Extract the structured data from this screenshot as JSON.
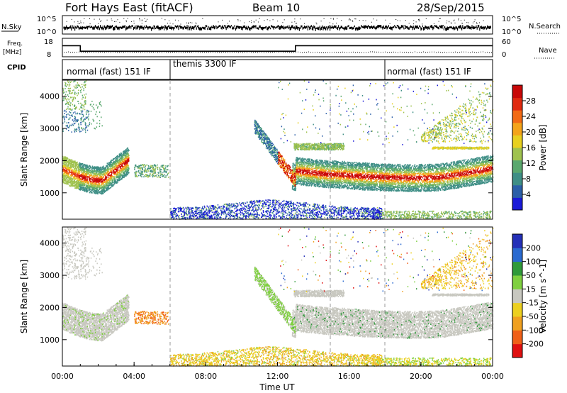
{
  "header": {
    "title": "Fort Hays East (fitACF)",
    "beam": "Beam 10",
    "date": "28/Sep/2015"
  },
  "sky_panel": {
    "left_label": "N.Sky",
    "right_label": "N.Search",
    "left_ticks": [
      "10^5",
      "10^0"
    ],
    "right_ticks": [
      "10^5",
      "10^0"
    ]
  },
  "freq_panel": {
    "left_label_top": "Freq.",
    "left_label_bottom": "[MHz]",
    "left_ticks": [
      "18",
      "8"
    ],
    "right_label": "Nave",
    "right_ticks": [
      "60",
      "0"
    ],
    "cpid_label": "CPID"
  },
  "modes": [
    {
      "name": "normal (fast) 151 IF",
      "start": "00:00",
      "end": "06:00"
    },
    {
      "name": "themis 3300 IF",
      "start": "06:00",
      "end": "18:00"
    },
    {
      "name": "normal (fast) 151 IF",
      "start": "18:00",
      "end": "24:00"
    }
  ],
  "x_axis": {
    "title": "Time UT",
    "ticks": [
      "00:00",
      "04:00",
      "08:00",
      "12:00",
      "16:00",
      "20:00",
      "00:00"
    ]
  },
  "power_panel": {
    "ylabel": "Slant Range [km]",
    "yticks": [
      "1000",
      "2000",
      "3000",
      "4000"
    ],
    "colorbar_label": "Power [dB]",
    "colorbar_ticks": [
      "4",
      "8",
      "12",
      "16",
      "20",
      "24",
      "28"
    ],
    "colors": [
      "#1a1ad8",
      "#2b5fa8",
      "#3f8f86",
      "#5aa86e",
      "#9fc24f",
      "#e8d020",
      "#f4a41a",
      "#f26a14",
      "#e02a10",
      "#c80808"
    ]
  },
  "velocity_panel": {
    "ylabel": "Slant Range [km]",
    "yticks": [
      "1000",
      "2000",
      "3000",
      "4000"
    ],
    "colorbar_label": "Velocity [m s^-1]",
    "colorbar_ticks": [
      "200",
      "100",
      "50",
      "15",
      "-15",
      "-50",
      "-100",
      "-200"
    ],
    "colors": [
      "#2430b8",
      "#2a6ad0",
      "#2f9a3a",
      "#7fd040",
      "#c8c8c0",
      "#ecd020",
      "#f0a020",
      "#f06018",
      "#e01010"
    ]
  },
  "chart_data": [
    {
      "type": "line",
      "title": "N.Sky / N.Search",
      "x_range_hours": [
        0,
        24
      ],
      "note_values": "noise levels between 10^0 and 10^5"
    },
    {
      "type": "line",
      "title": "Freq. / Nave",
      "series": [
        {
          "name": "Freq. [MHz]",
          "x_hours": [
            0,
            1,
            1,
            13,
            13,
            24
          ],
          "values": [
            14,
            14,
            11,
            11,
            14,
            14
          ]
        }
      ],
      "ylim": [
        8,
        18
      ]
    },
    {
      "type": "heatmap",
      "title": "Power [dB]",
      "xlabel": "Time UT",
      "ylabel": "Slant Range [km]",
      "x_range_hours": [
        0,
        24
      ],
      "ylim": [
        180,
        4500
      ],
      "clim": [
        0,
        30
      ],
      "features": [
        {
          "name": "F-region band (early)",
          "x_hours": [
            0,
            3.5
          ],
          "range_km": [
            1300,
            2300
          ],
          "power_dB": 28
        },
        {
          "name": "Near-range band",
          "x_hours": [
            6,
            17.5
          ],
          "range_km": [
            200,
            500
          ],
          "power_dB": 10
        },
        {
          "name": "F-region band (late)",
          "x_hours": [
            12.5,
            24
          ],
          "range_km": [
            1300,
            2200
          ],
          "power_dB": 24
        }
      ]
    },
    {
      "type": "heatmap",
      "title": "Velocity [m s^-1]",
      "xlabel": "Time UT",
      "ylabel": "Slant Range [km]",
      "x_range_hours": [
        0,
        24
      ],
      "ylim": [
        180,
        4500
      ],
      "clim": [
        -200,
        200
      ],
      "features": [
        {
          "name": "Ground scatter (early)",
          "x_hours": [
            0,
            3.5
          ],
          "range_km": [
            1300,
            2300
          ],
          "velocity": 0
        },
        {
          "name": "Near-range band",
          "x_hours": [
            6,
            17.5
          ],
          "range_km": [
            200,
            500
          ],
          "velocity": -30
        },
        {
          "name": "Ground scatter (late)",
          "x_hours": [
            12.5,
            24
          ],
          "range_km": [
            1300,
            2200
          ],
          "velocity": 0
        }
      ]
    }
  ]
}
